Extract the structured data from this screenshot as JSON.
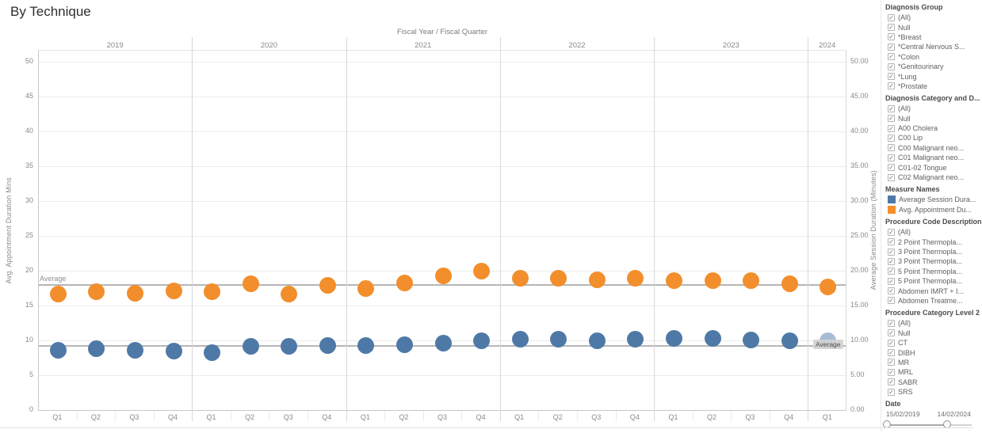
{
  "title": "By Technique",
  "chart_data": {
    "type": "scatter",
    "title": "By Technique",
    "x_axis_title": "Fiscal Year / Fiscal Quarter",
    "years": [
      {
        "label": "2019",
        "quarters": [
          "Q1",
          "Q2",
          "Q3",
          "Q4"
        ]
      },
      {
        "label": "2020",
        "quarters": [
          "Q1",
          "Q2",
          "Q3",
          "Q4"
        ]
      },
      {
        "label": "2021",
        "quarters": [
          "Q1",
          "Q2",
          "Q3",
          "Q4"
        ]
      },
      {
        "label": "2022",
        "quarters": [
          "Q1",
          "Q2",
          "Q3",
          "Q4"
        ]
      },
      {
        "label": "2023",
        "quarters": [
          "Q1",
          "Q2",
          "Q3",
          "Q4"
        ]
      },
      {
        "label": "2024",
        "quarters": [
          "Q1"
        ]
      }
    ],
    "left_axis": {
      "title": "Avg. Appointment Duration Mins",
      "min": 0,
      "max": 50,
      "tick_step": 5,
      "decimals": 0
    },
    "right_axis": {
      "title": "Average Session Duration (Minutes)",
      "min": 0,
      "max": 50,
      "tick_step": 5,
      "decimals": 2
    },
    "grid": true,
    "series": [
      {
        "name": "Avg. Appointment Duration Mins",
        "color": "#f28e2b",
        "axis": "left",
        "values": [
          16.6,
          17.0,
          16.8,
          17.1,
          17.0,
          18.1,
          16.6,
          17.9,
          17.4,
          18.2,
          19.3,
          19.9,
          18.9,
          18.9,
          18.7,
          18.9,
          18.6,
          18.6,
          18.6,
          18.1,
          17.7
        ],
        "faded_indices": []
      },
      {
        "name": "Average Session Duration (Minutes)",
        "color": "#4e79a7",
        "axis": "right",
        "values": [
          8.6,
          8.8,
          8.6,
          8.5,
          8.2,
          9.1,
          9.1,
          9.3,
          9.3,
          9.4,
          9.6,
          10.0,
          10.2,
          10.2,
          10.0,
          10.2,
          10.3,
          10.3,
          10.1,
          10.0,
          9.9
        ],
        "faded_indices": [
          20
        ]
      }
    ],
    "reference_lines": [
      {
        "label": "Average",
        "value": 17.9,
        "label_side": "left",
        "boxed": false
      },
      {
        "label": "Average",
        "value": 9.2,
        "label_side": "right",
        "boxed": true
      }
    ]
  },
  "sidebar": {
    "sections": [
      {
        "type": "checkboxes",
        "title": "Diagnosis Group",
        "items": [
          "(All)",
          "Null",
          "*Breast",
          "*Central Nervous S...",
          "*Colon",
          "*Genitourinary",
          "*Lung",
          "*Prostate"
        ],
        "checked": true
      },
      {
        "type": "checkboxes",
        "title": "Diagnosis Category and D...",
        "items": [
          "(All)",
          "Null",
          "A00 Cholera",
          "C00 Lip",
          "C00 Malignant neo...",
          "C01 Malignant neo...",
          "C01-02 Tongue",
          "C02 Malignant neo..."
        ],
        "checked": true
      },
      {
        "type": "legend",
        "title": "Measure Names",
        "items": [
          {
            "label": "Average Session Dura...",
            "color": "#4e79a7"
          },
          {
            "label": "Avg. Appointment Du...",
            "color": "#f28e2b"
          }
        ]
      },
      {
        "type": "checkboxes",
        "title": "Procedure Code Description",
        "items": [
          "(All)",
          "2 Point Thermopla...",
          "3 Point Thermopla...",
          "3 Point Thermopla...",
          "5 Point Thermopla...",
          "5 Point Thermopla...",
          "Abdomen IMRT + I...",
          "Abdomen Treatme..."
        ],
        "checked": true
      },
      {
        "type": "checkboxes",
        "title": "Procedure Category Level 2",
        "items": [
          "(All)",
          "Null",
          "CT",
          "DIBH",
          "MR",
          "MRL",
          "SABR",
          "SRS"
        ],
        "checked": true
      },
      {
        "type": "date-slider",
        "title": "Date",
        "start": "15/02/2019",
        "end": "14/02/2024",
        "range_start_pct": 2,
        "range_end_pct": 72
      }
    ]
  }
}
